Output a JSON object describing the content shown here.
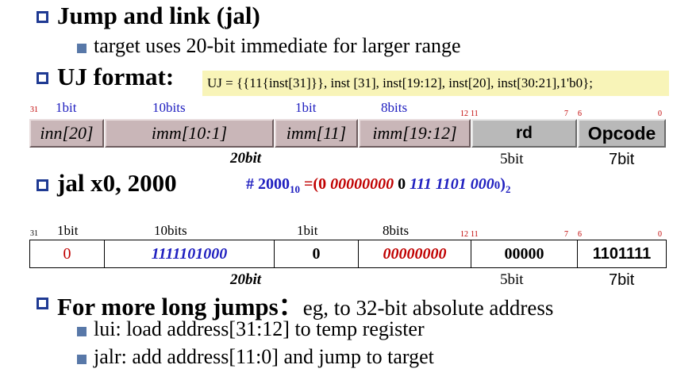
{
  "bullets": {
    "jal_title": "Jump and link (jal)",
    "jal_sub": "target uses 20-bit immediate for larger range",
    "uj_title": "UJ format:",
    "uj_formula": "UJ = {{11{inst[31]}}, inst [31], inst[19:12], inst[20], inst[30:21],1'b0};",
    "example_title": "jal  x0, 2000",
    "long_title": "For more long jumps：",
    "long_tail": "eg, to 32-bit absolute address",
    "long_sub1": "lui: load address[31:12] to temp register",
    "long_sub2": "jalr: add address[11:0] and jump to target"
  },
  "annotation": {
    "hash": "# 2000",
    "sub10": "10",
    "eq": " =(",
    "g0": "0 ",
    "g1": "00000000",
    "g2": " 0 ",
    "g3": "111 1101 000",
    "g3b": "0",
    "close": ")",
    "sub2": "2"
  },
  "format_table": {
    "bitpos": [
      "31",
      "12",
      "11",
      "7",
      "6",
      "0"
    ],
    "widths": [
      "1bit",
      "10bits",
      "1bit",
      "8bits"
    ],
    "fields": [
      "inn[20]",
      "imm[10:1]",
      "imm[11]",
      "imm[19:12]",
      "rd",
      "Opcode"
    ],
    "below": [
      "20bit",
      "5bit",
      "7bit"
    ]
  },
  "example_table": {
    "bitpos": [
      "31",
      "12",
      "11",
      "7",
      "6",
      "0"
    ],
    "widths": [
      "1bit",
      "10bits",
      "1bit",
      "8bits"
    ],
    "fields": [
      "0",
      "1111101000",
      "0",
      "00000000",
      "00000",
      "1101111"
    ],
    "below": [
      "20bit",
      "5bit",
      "7bit"
    ]
  },
  "colors": {
    "title_blue": "#1f3a93",
    "bit_red": "#c00000",
    "imm_blue": "#2020c0",
    "formula_bg": "#f8f4b8"
  }
}
